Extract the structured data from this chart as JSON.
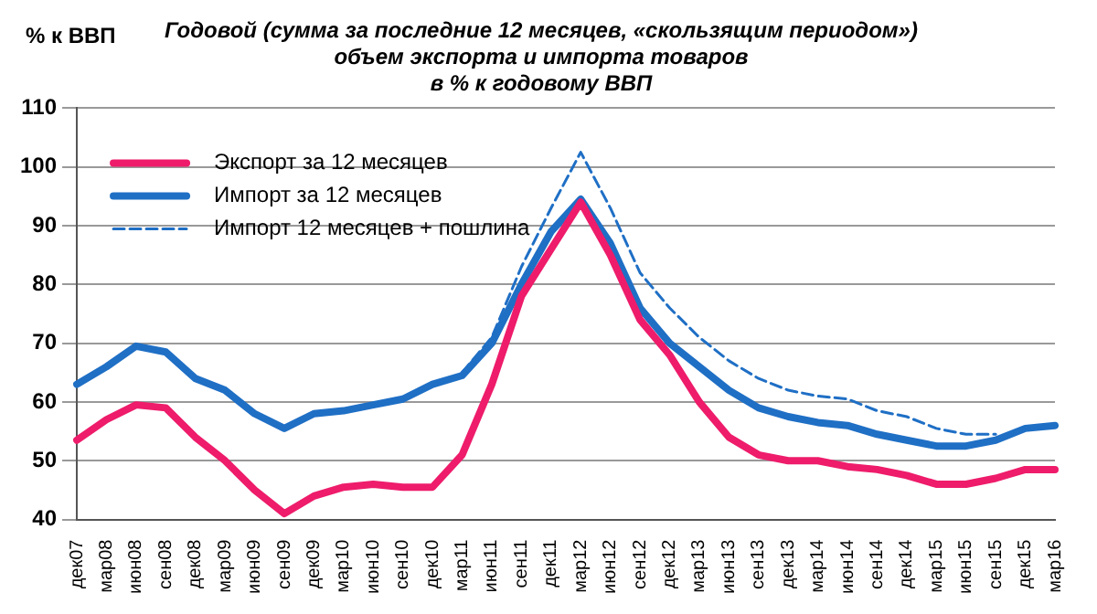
{
  "chart_data": {
    "type": "line",
    "title": "Годовой (сумма за последние 12 месяцев, «скользящим периодом»)\nобъем экспорта и импорта товаров\nв % к годовому ВВП",
    "ylabel": "% к ВВП",
    "categories": [
      "дек07",
      "мар08",
      "июн08",
      "сен08",
      "дек08",
      "мар09",
      "июн09",
      "сен09",
      "дек09",
      "мар10",
      "июн10",
      "сен10",
      "дек10",
      "мар11",
      "июн11",
      "сен11",
      "дек11",
      "мар12",
      "июн12",
      "сен12",
      "дек12",
      "мар13",
      "июн13",
      "сен13",
      "дек13",
      "мар14",
      "июн14",
      "сен14",
      "дек14",
      "мар15",
      "июн15",
      "сен15",
      "дек15",
      "мар16"
    ],
    "series": [
      {
        "name": "Экспорт за 12 месяцев",
        "color": "#ee1c6b",
        "line_style": "solid",
        "values": [
          53.5,
          57,
          59.5,
          59,
          54,
          50,
          45,
          41,
          44,
          45.5,
          46,
          45.5,
          45.5,
          51,
          63,
          78,
          86,
          94,
          85,
          74,
          68,
          60,
          54,
          51,
          50,
          50,
          49,
          48.5,
          47.5,
          46,
          46,
          47,
          48.5,
          48.5
        ]
      },
      {
        "name": "Импорт за 12 месяцев",
        "color": "#1f6fc5",
        "line_style": "solid",
        "values": [
          63,
          66,
          69.5,
          68.5,
          64,
          62,
          58,
          55.5,
          58,
          58.5,
          59.5,
          60.5,
          63,
          64.5,
          70,
          80,
          89,
          94.5,
          87,
          76,
          70,
          66,
          62,
          59,
          57.5,
          56.5,
          56,
          54.5,
          53.5,
          52.5,
          52.5,
          53.5,
          55.5,
          56
        ]
      },
      {
        "name": "Импорт 12 месяцев + пошлина",
        "color": "#1f6fc5",
        "line_style": "dashed",
        "values": [
          null,
          null,
          null,
          null,
          null,
          null,
          null,
          null,
          null,
          null,
          null,
          null,
          null,
          65,
          71,
          83,
          93,
          102.5,
          93,
          82,
          76,
          71,
          67,
          64,
          62,
          61,
          60.5,
          58.5,
          57.5,
          55.5,
          54.5,
          54.5,
          null,
          null
        ]
      }
    ],
    "ylim": [
      40,
      110
    ],
    "yticks": [
      40,
      50,
      60,
      70,
      80,
      90,
      100,
      110
    ],
    "grid": "y",
    "legend": "top left",
    "marker": "none"
  }
}
